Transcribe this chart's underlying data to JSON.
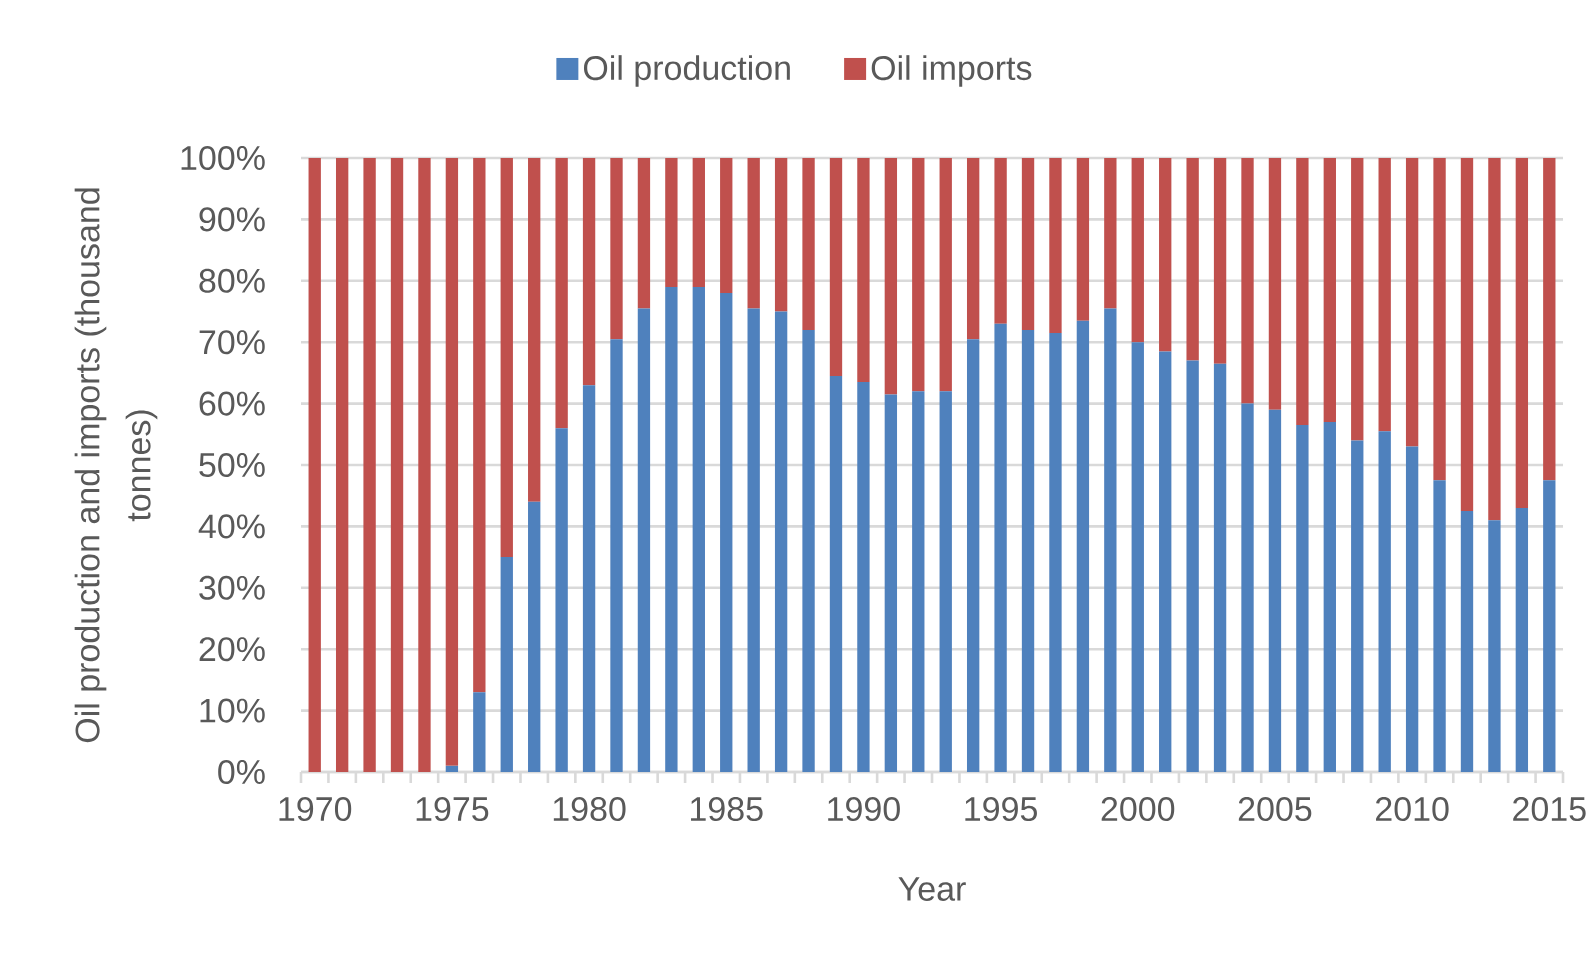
{
  "chart_data": {
    "type": "bar",
    "stacked": true,
    "categories": [
      "1970",
      null,
      null,
      null,
      null,
      "1975",
      null,
      null,
      null,
      null,
      "1980",
      null,
      null,
      null,
      null,
      "1985",
      null,
      null,
      null,
      null,
      "1990",
      null,
      null,
      null,
      null,
      "1995",
      null,
      null,
      null,
      null,
      "2000",
      null,
      null,
      null,
      null,
      "2005",
      null,
      null,
      null,
      null,
      "2010",
      null,
      null,
      null,
      null,
      "2015"
    ],
    "series": [
      {
        "name": "Oil production",
        "color": "#4f81bd",
        "values": [
          0,
          0,
          0,
          0,
          0,
          1,
          13,
          35,
          44,
          56,
          63,
          70.5,
          75.5,
          79,
          79,
          78,
          75.5,
          75,
          72,
          64.5,
          63.5,
          61.5,
          62,
          62,
          70.5,
          73,
          72,
          71.5,
          73.5,
          75.5,
          70,
          68.5,
          67,
          66.5,
          60,
          59,
          56.5,
          57,
          54,
          55.5,
          53,
          47.5,
          42.5,
          41,
          43,
          47.5
        ]
      },
      {
        "name": "Oil imports",
        "color": "#c0504d",
        "values": [
          100,
          100,
          100,
          100,
          100,
          99,
          87,
          65,
          56,
          44,
          37,
          29.5,
          24.5,
          21,
          21,
          22,
          24.5,
          25,
          28,
          35.5,
          36.5,
          38.5,
          38,
          38,
          29.5,
          27,
          28,
          28.5,
          26.5,
          24.5,
          30,
          31.5,
          33,
          33.5,
          40,
          41,
          43.5,
          43,
          46,
          44.5,
          47,
          52.5,
          57.5,
          59,
          57,
          52.5
        ]
      }
    ],
    "xlabel": "Year",
    "ylabel": "Oil production and imports (thousand tonnes)",
    "ylim": [
      0,
      100
    ],
    "yticks": [
      {
        "value": 0,
        "label": "0%"
      },
      {
        "value": 10,
        "label": "10%"
      },
      {
        "value": 20,
        "label": "20%"
      },
      {
        "value": 30,
        "label": "30%"
      },
      {
        "value": 40,
        "label": "40%"
      },
      {
        "value": 50,
        "label": "50%"
      },
      {
        "value": 60,
        "label": "60%"
      },
      {
        "value": 70,
        "label": "70%"
      },
      {
        "value": 80,
        "label": "80%"
      },
      {
        "value": 90,
        "label": "90%"
      },
      {
        "value": 100,
        "label": "100%"
      }
    ],
    "grid": "y",
    "legend": "top"
  }
}
